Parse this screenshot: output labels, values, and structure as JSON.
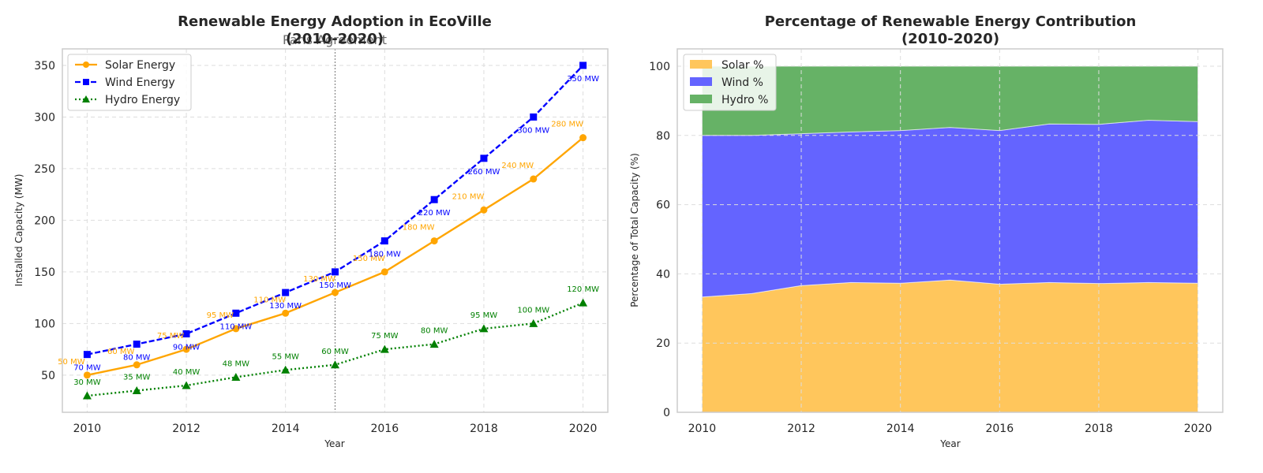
{
  "chart_data": [
    {
      "type": "line",
      "title": "Renewable Energy Adoption in EcoVille",
      "title_line2": "(2010-2020)",
      "annotation": "Paris Agreement",
      "annotation_x": 2015,
      "xlabel": "Year",
      "ylabel": "Installed Capacity (MW)",
      "x": [
        2010,
        2011,
        2012,
        2013,
        2014,
        2015,
        2016,
        2017,
        2018,
        2019,
        2020
      ],
      "xticks": [
        "2010",
        "2012",
        "2014",
        "2016",
        "2018",
        "2020"
      ],
      "yticks": [
        "50",
        "100",
        "150",
        "200",
        "250",
        "300",
        "350"
      ],
      "xlim": [
        2009.5,
        2020.5
      ],
      "ylim": [
        14,
        366
      ],
      "grid": true,
      "legend": "top-left",
      "series": [
        {
          "name": "Solar Energy",
          "color": "#ffa500",
          "marker": "circle",
          "linestyle": "solid",
          "values": [
            50,
            60,
            75,
            95,
            110,
            130,
            150,
            180,
            210,
            240,
            280
          ],
          "labels": [
            "50 MW",
            "60 MW",
            "75 MW",
            "95 MW",
            "110 MW",
            "130 MW",
            "150 MW",
            "180 MW",
            "210 MW",
            "240 MW",
            "280 MW"
          ]
        },
        {
          "name": "Wind Energy",
          "color": "#0000ff",
          "marker": "square",
          "linestyle": "dashed",
          "values": [
            70,
            80,
            90,
            110,
            130,
            150,
            180,
            220,
            260,
            300,
            350
          ],
          "labels": [
            "70 MW",
            "80 MW",
            "90 MW",
            "110 MW",
            "130 MW",
            "150 MW",
            "180 MW",
            "220 MW",
            "260 MW",
            "300 MW",
            "350 MW"
          ]
        },
        {
          "name": "Hydro Energy",
          "color": "#008000",
          "marker": "triangle",
          "linestyle": "dotted",
          "values": [
            30,
            35,
            40,
            48,
            55,
            60,
            75,
            80,
            95,
            100,
            120
          ],
          "labels": [
            "30 MW",
            "35 MW",
            "40 MW",
            "48 MW",
            "55 MW",
            "60 MW",
            "75 MW",
            "80 MW",
            "95 MW",
            "100 MW",
            "120 MW"
          ]
        }
      ]
    },
    {
      "type": "area",
      "title": "Percentage of Renewable Energy Contribution",
      "title_line2": "(2010-2020)",
      "xlabel": "Year",
      "ylabel": "Percentage of Total Capacity (%)",
      "x": [
        2010,
        2011,
        2012,
        2013,
        2014,
        2015,
        2016,
        2017,
        2018,
        2019,
        2020
      ],
      "xticks": [
        "2010",
        "2012",
        "2014",
        "2016",
        "2018",
        "2020"
      ],
      "yticks": [
        "0",
        "20",
        "40",
        "60",
        "80",
        "100"
      ],
      "xlim": [
        2009.5,
        2020.5
      ],
      "ylim": [
        0,
        105
      ],
      "grid": true,
      "legend": "top-left",
      "stacked": true,
      "series": [
        {
          "name": "Solar %",
          "color": "#ffc65c",
          "values": [
            33.3,
            34.3,
            36.6,
            37.5,
            37.3,
            38.2,
            37.0,
            37.5,
            37.2,
            37.5,
            37.3
          ]
        },
        {
          "name": "Wind %",
          "color": "#6464ff",
          "values": [
            46.7,
            45.7,
            43.9,
            43.5,
            44.1,
            44.1,
            44.4,
            45.8,
            46.0,
            46.9,
            46.7
          ]
        },
        {
          "name": "Hydro %",
          "color": "#66b266",
          "values": [
            20.0,
            20.0,
            19.5,
            19.0,
            18.6,
            17.7,
            18.6,
            16.7,
            16.8,
            15.6,
            16.0
          ]
        }
      ]
    }
  ]
}
